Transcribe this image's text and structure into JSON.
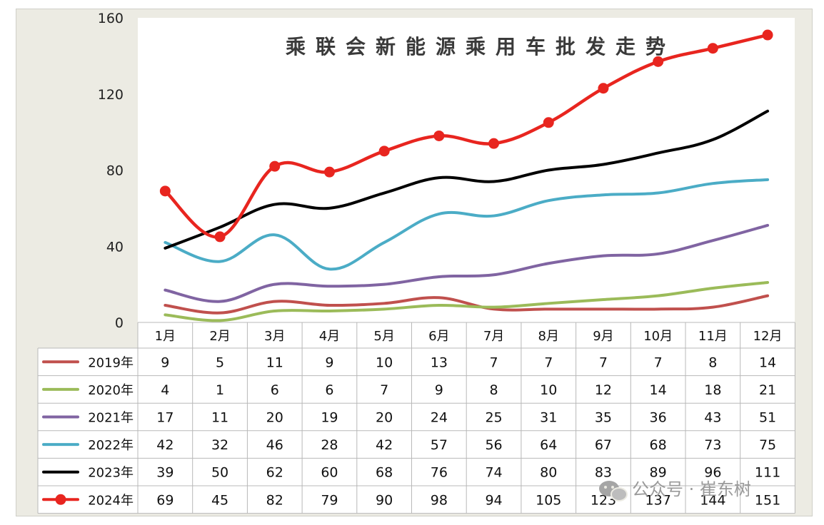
{
  "chart_data": {
    "type": "line",
    "title": "乘联会新能源乘用车批发走势",
    "categories": [
      "1月",
      "2月",
      "3月",
      "4月",
      "5月",
      "6月",
      "7月",
      "8月",
      "9月",
      "10月",
      "11月",
      "12月"
    ],
    "ylim": [
      0,
      160
    ],
    "yticks": [
      "0",
      "40",
      "80",
      "120",
      "160"
    ],
    "grid": false,
    "legend": "bottom-table",
    "series": [
      {
        "name": "2019年",
        "color": "#c0504d",
        "values": [
          9,
          5,
          11,
          9,
          10,
          13,
          7,
          7,
          7,
          7,
          8,
          14
        ]
      },
      {
        "name": "2020年",
        "color": "#9bbb59",
        "values": [
          4,
          1,
          6,
          6,
          7,
          9,
          8,
          10,
          12,
          14,
          18,
          21
        ]
      },
      {
        "name": "2021年",
        "color": "#8064a2",
        "values": [
          17,
          11,
          20,
          19,
          20,
          24,
          25,
          31,
          35,
          36,
          43,
          51
        ]
      },
      {
        "name": "2022年",
        "color": "#4bacc6",
        "values": [
          42,
          32,
          46,
          28,
          42,
          57,
          56,
          64,
          67,
          68,
          73,
          75
        ]
      },
      {
        "name": "2023年",
        "color": "#000000",
        "values": [
          39,
          50,
          62,
          60,
          68,
          76,
          74,
          80,
          83,
          89,
          96,
          111
        ]
      },
      {
        "name": "2024年",
        "color": "#e8251f",
        "values": [
          69,
          45,
          82,
          79,
          90,
          98,
          94,
          105,
          123,
          137,
          144,
          151
        ],
        "markers": true
      }
    ]
  },
  "watermark": {
    "text": "公众号 · 崔东树",
    "icon": "wechat-icon"
  }
}
